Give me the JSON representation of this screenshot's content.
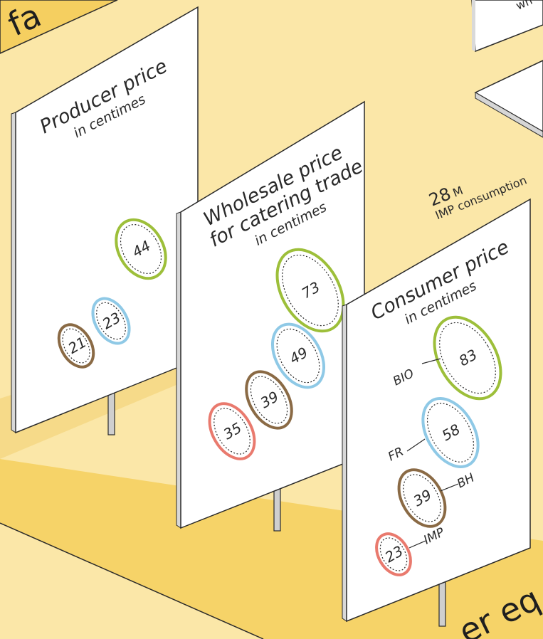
{
  "edge_text": {
    "top_left": "r fa",
    "bottom_right": "er eq",
    "top_right": "wh"
  },
  "consumption_note": {
    "value": "28",
    "unit": "M",
    "label": "IMP consumption"
  },
  "signs": {
    "producer": {
      "title": "Producer price",
      "subtitle": "in centimes",
      "bio": "44",
      "fr": "23",
      "bh": "21"
    },
    "wholesale": {
      "title_line1": "Wholesale price",
      "title_line2": "for catering trade",
      "subtitle": "in centimes",
      "bio": "73",
      "fr": "49",
      "bh": "39",
      "imp": "35"
    },
    "consumer": {
      "title": "Consumer price",
      "subtitle": "in centimes",
      "bio": "83",
      "fr": "58",
      "bh": "39",
      "imp": "23",
      "labels": {
        "bio": "BIO",
        "fr": "FR",
        "bh": "BH",
        "imp": "IMP"
      }
    }
  },
  "colors": {
    "background": "#fbe7a8",
    "platform": "#f5d066",
    "bio": "#9dbf3a",
    "fr": "#8fc9e6",
    "bh": "#8a6a45",
    "imp": "#e97a6e"
  }
}
